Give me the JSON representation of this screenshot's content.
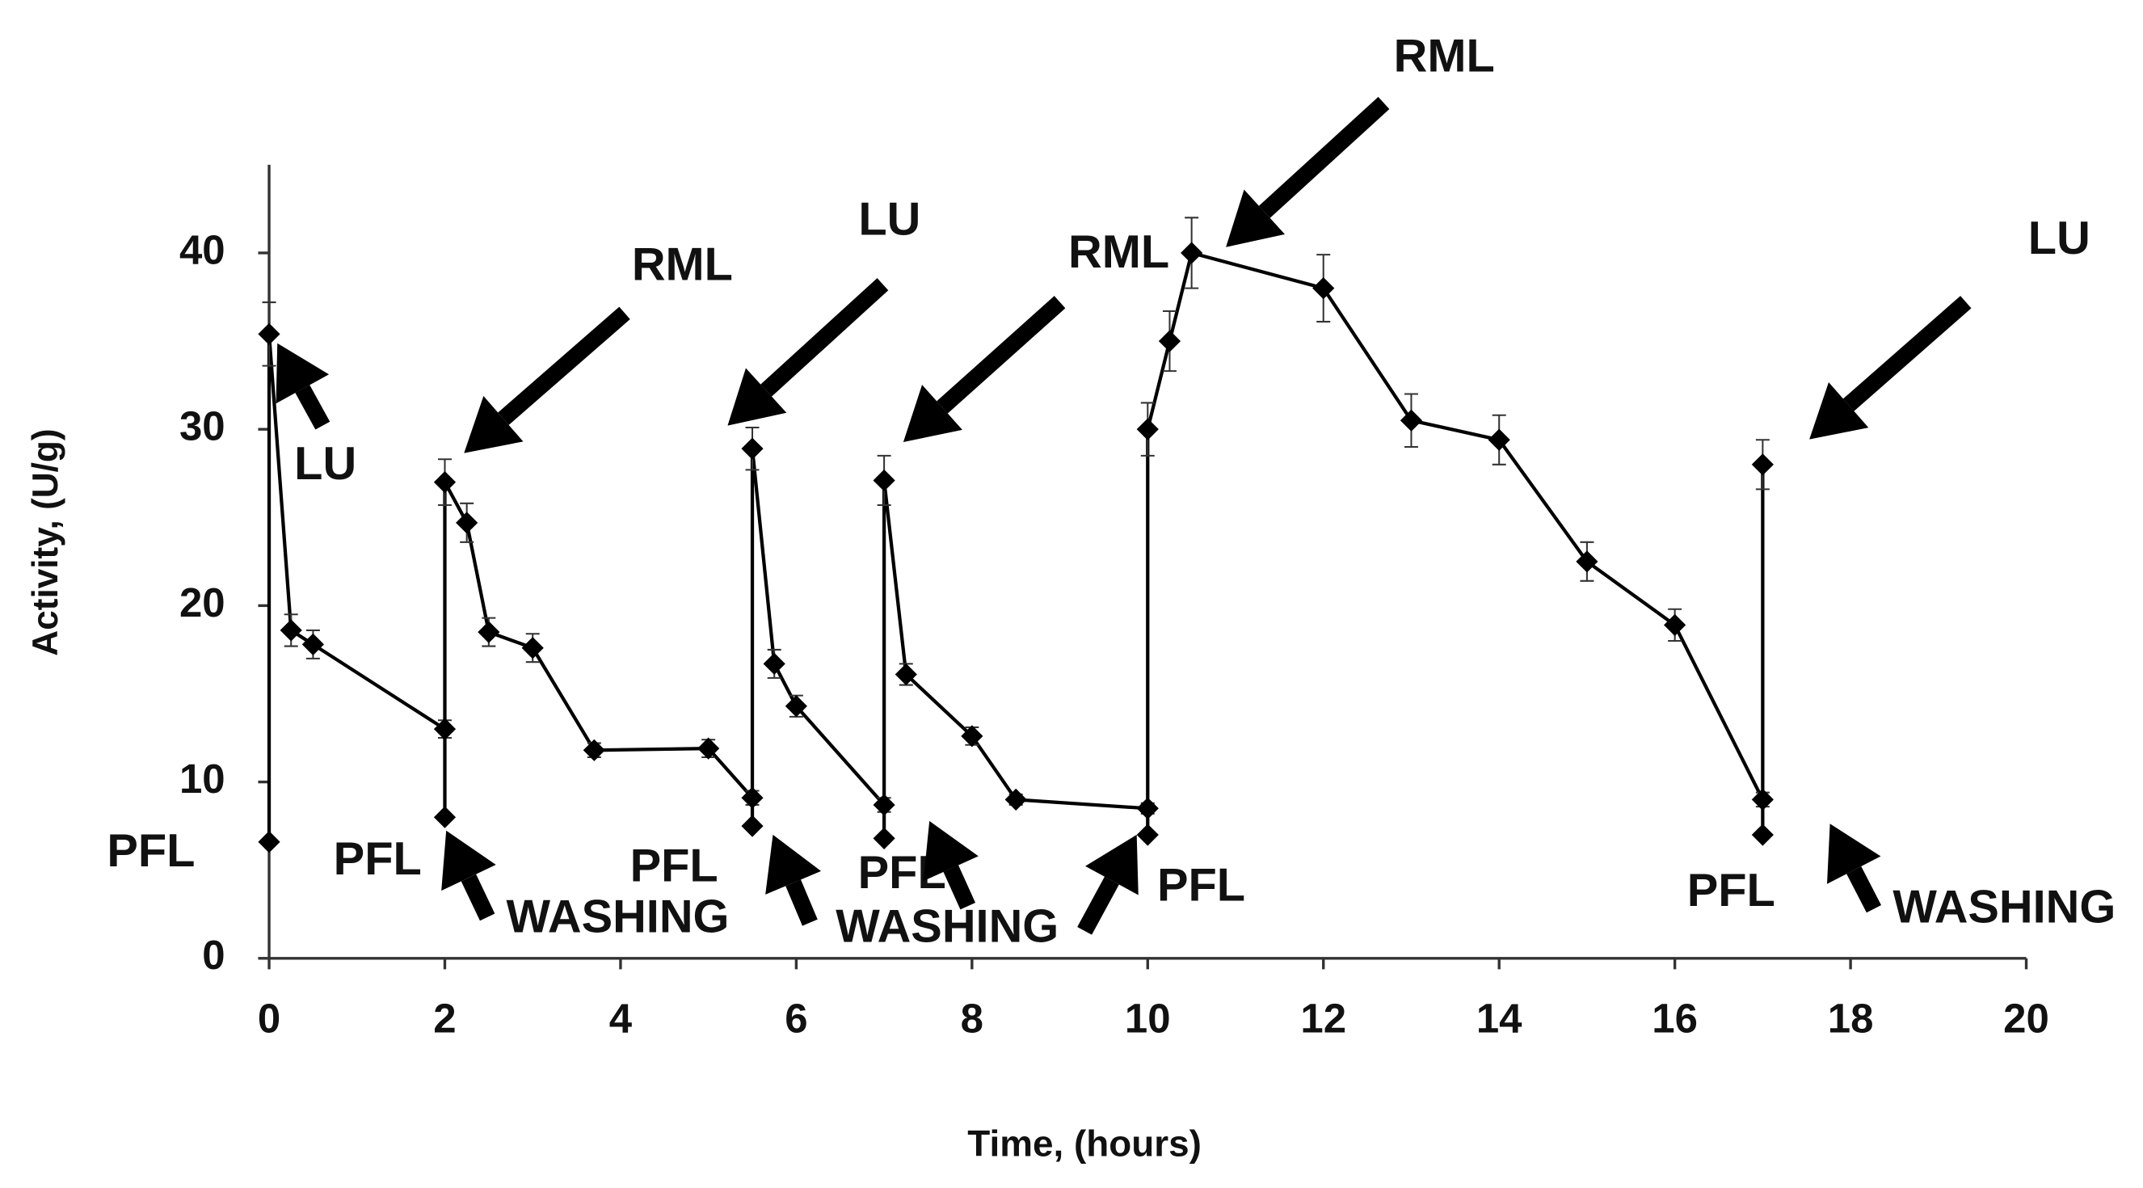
{
  "chart_data": {
    "type": "line",
    "xlabel": "Time, (hours)",
    "ylabel": "Activity, (U/g)",
    "xlim": [
      0,
      20
    ],
    "xticks": [
      0,
      2,
      4,
      6,
      8,
      10,
      12,
      14,
      16,
      18,
      20
    ],
    "ylim": [
      0,
      45
    ],
    "yticks": [
      0,
      10,
      20,
      30,
      40
    ],
    "color": "#000000",
    "x": [
      0,
      0,
      0.25,
      0.5,
      2,
      2,
      2,
      2.25,
      2.5,
      3,
      3.7,
      5,
      5.5,
      5.5,
      5.5,
      5.75,
      6,
      7,
      7,
      7,
      7.25,
      8,
      8.5,
      10,
      10,
      10,
      10.25,
      10.5,
      12,
      13,
      14,
      15,
      16,
      17,
      17,
      17
    ],
    "values": [
      6.6,
      35.4,
      18.6,
      17.8,
      13.0,
      8.0,
      27.0,
      24.7,
      18.5,
      17.6,
      11.8,
      11.9,
      9.1,
      7.5,
      28.9,
      16.7,
      14.3,
      8.7,
      6.8,
      27.1,
      16.1,
      12.6,
      9.0,
      8.5,
      7.0,
      30.0,
      35.0,
      40.0,
      38.0,
      30.5,
      29.4,
      22.5,
      18.9,
      9.0,
      7.0,
      28.0
    ],
    "errors": [
      null,
      1.8,
      0.9,
      0.8,
      0.5,
      null,
      1.3,
      1.1,
      0.8,
      0.8,
      0.4,
      0.5,
      0.4,
      null,
      1.2,
      0.8,
      0.6,
      0.4,
      null,
      1.4,
      0.6,
      0.5,
      0.3,
      0.3,
      null,
      1.5,
      1.7,
      2.0,
      1.9,
      1.5,
      1.4,
      1.1,
      0.9,
      0.4,
      null,
      1.4
    ],
    "annotations": [
      "LU",
      "PFL",
      "RML",
      "PFL",
      "WASHING",
      "LU",
      "PFL",
      "RML",
      "PFL",
      "WASHING",
      "PFL",
      "RML",
      "LU",
      "PFL",
      "WASHING"
    ]
  }
}
